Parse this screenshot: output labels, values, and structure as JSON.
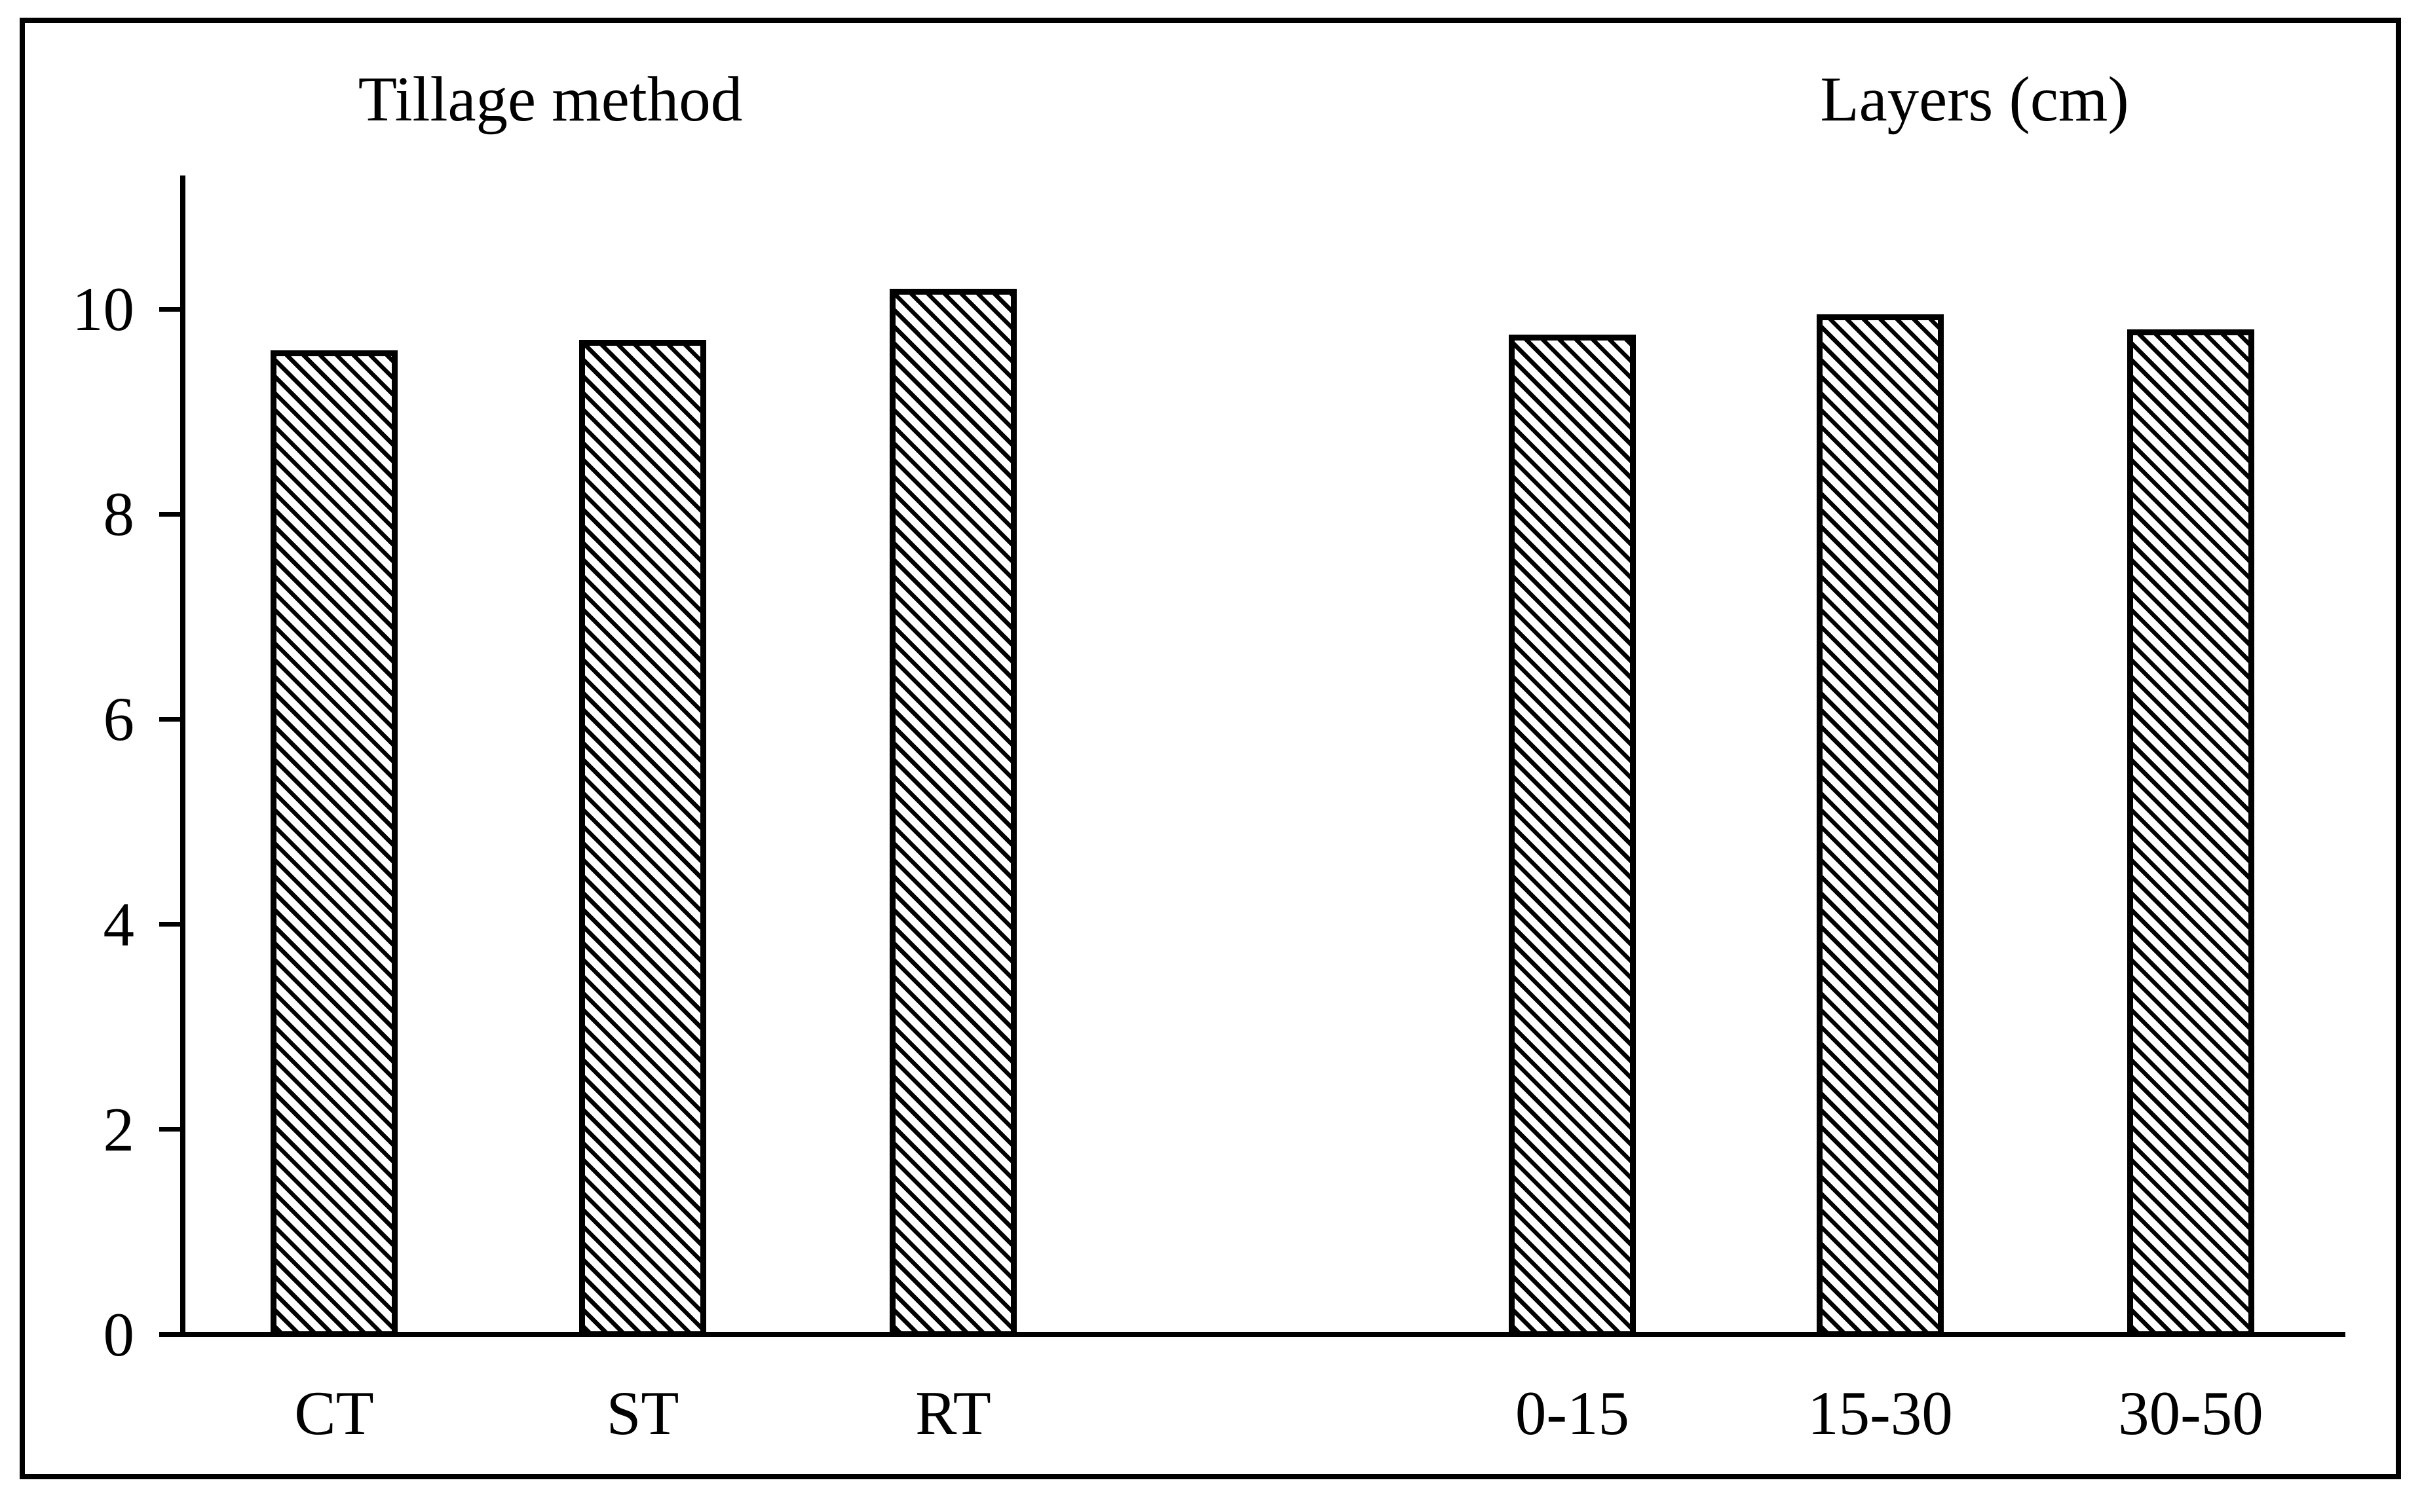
{
  "figure": {
    "background_color": "#ffffff",
    "frame_color": "#000000"
  },
  "chart_data": {
    "type": "bar",
    "title": "",
    "xlabel": "",
    "ylabel": "",
    "ylim": [
      0,
      11.3
    ],
    "yticks": [
      0,
      2,
      4,
      6,
      8,
      10
    ],
    "grid": false,
    "legend": null,
    "groups": [
      {
        "title": "Tillage method",
        "categories": [
          "CT",
          "ST",
          "RT"
        ],
        "values": [
          9.6,
          9.7,
          10.2
        ]
      },
      {
        "title": "Layers (cm)",
        "categories": [
          "0-15",
          "15-30",
          "30-50"
        ],
        "values": [
          9.75,
          9.95,
          9.8
        ]
      }
    ],
    "bar_style": {
      "fill_pattern": "hatch-diagonal-down",
      "hatch_color": "#000000",
      "fill_background": "#ffffff",
      "border_color": "#000000"
    }
  }
}
